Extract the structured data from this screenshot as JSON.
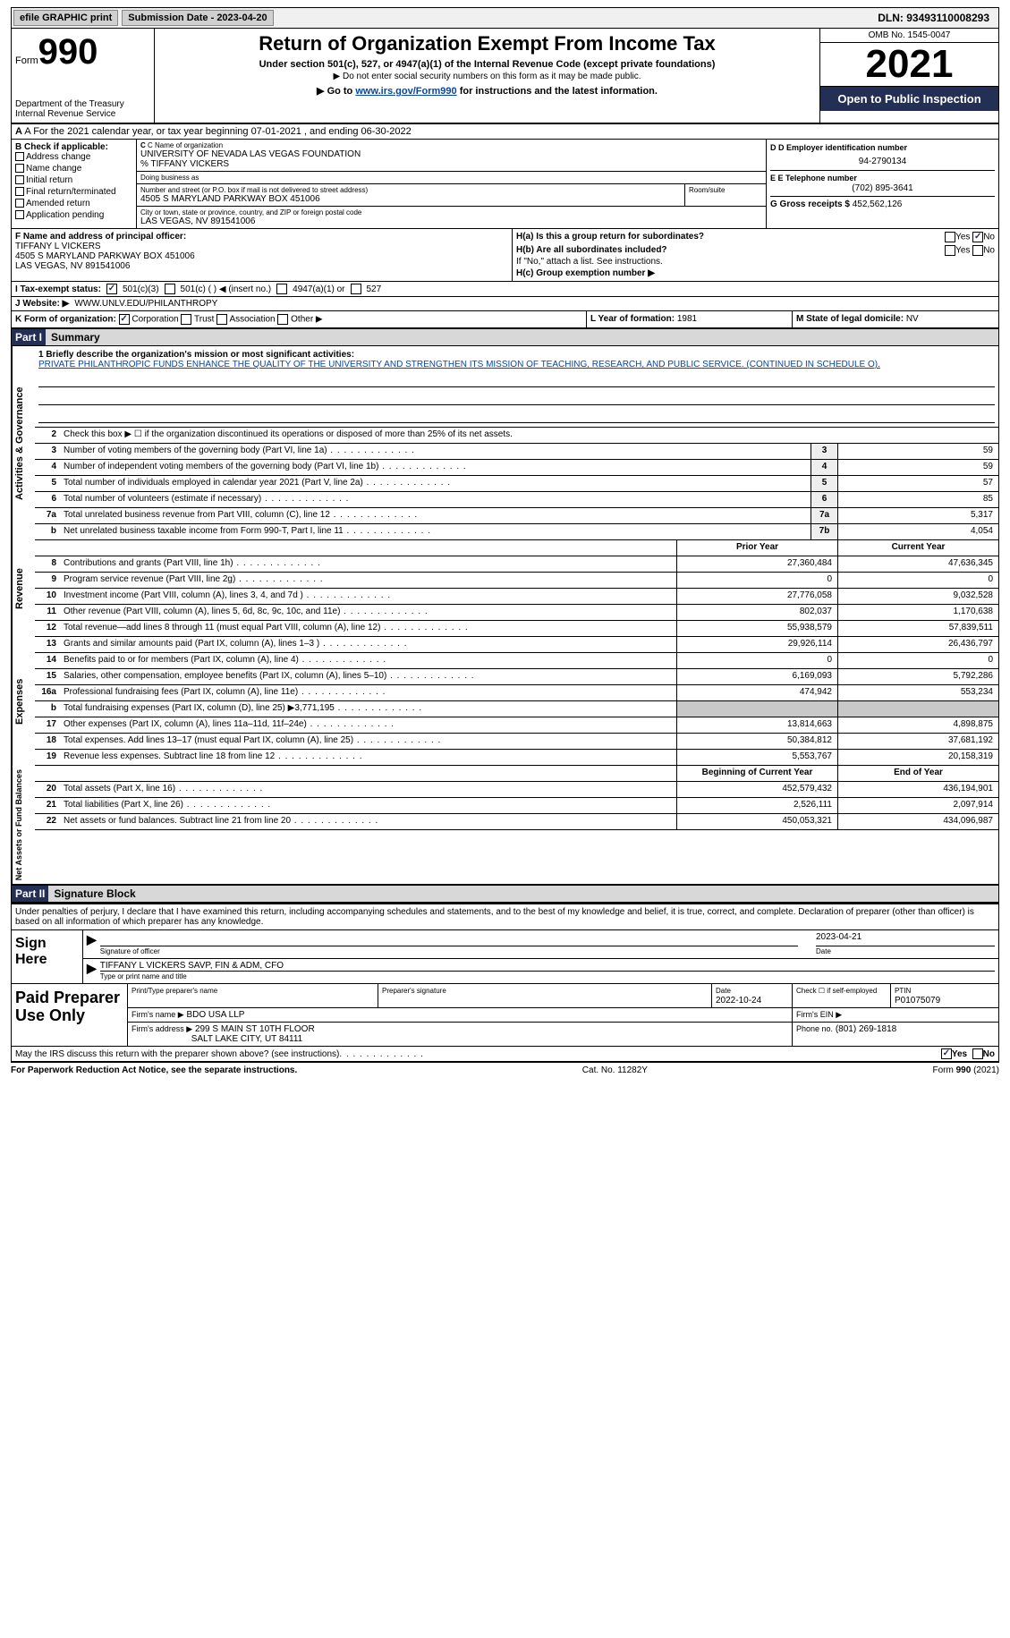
{
  "topbar": {
    "efile_label": "efile GRAPHIC print",
    "submission_label": "Submission Date - 2023-04-20",
    "dln_label": "DLN: 93493110008293"
  },
  "header": {
    "form_prefix": "Form",
    "form_number": "990",
    "dept": "Department of the Treasury Internal Revenue Service",
    "title": "Return of Organization Exempt From Income Tax",
    "subtitle": "Under section 501(c), 527, or 4947(a)(1) of the Internal Revenue Code (except private foundations)",
    "note1": "▶ Do not enter social security numbers on this form as it may be made public.",
    "note2_prefix": "▶ Go to ",
    "note2_link": "www.irs.gov/Form990",
    "note2_suffix": " for instructions and the latest information.",
    "omb": "OMB No. 1545-0047",
    "year": "2021",
    "open": "Open to Public Inspection"
  },
  "row_a": {
    "text": "A For the 2021 calendar year, or tax year beginning 07-01-2021     , and ending 06-30-2022"
  },
  "box_b": {
    "label": "B Check if applicable:",
    "opts": [
      "Address change",
      "Name change",
      "Initial return",
      "Final return/terminated",
      "Amended return",
      "Application pending"
    ]
  },
  "box_c": {
    "name_lbl": "C Name of organization",
    "name": "UNIVERSITY OF NEVADA LAS VEGAS FOUNDATION",
    "care_of": "% TIFFANY VICKERS",
    "dba_lbl": "Doing business as",
    "street_lbl": "Number and street (or P.O. box if mail is not delivered to street address)",
    "street": "4505 S MARYLAND PARKWAY BOX 451006",
    "room_lbl": "Room/suite",
    "city_lbl": "City or town, state or province, country, and ZIP or foreign postal code",
    "city": "LAS VEGAS, NV  891541006"
  },
  "box_d": {
    "ein_lbl": "D Employer identification number",
    "ein": "94-2790134",
    "tel_lbl": "E Telephone number",
    "tel": "(702) 895-3641",
    "gross_lbl": "G Gross receipts $",
    "gross": "452,562,126"
  },
  "box_f": {
    "lbl": "F Name and address of principal officer:",
    "name": "TIFFANY L VICKERS",
    "addr1": "4505 S MARYLAND PARKWAY BOX 451006",
    "addr2": "LAS VEGAS, NV  891541006"
  },
  "box_h": {
    "ha": "H(a)  Is this a group return for subordinates?",
    "hb": "H(b)  Are all subordinates included?",
    "hb_note": "If \"No,\" attach a list. See instructions.",
    "hc": "H(c)  Group exemption number ▶"
  },
  "row_i": {
    "lbl": "I  Tax-exempt status:",
    "opts": [
      "501(c)(3)",
      "501(c) (  ) ◀ (insert no.)",
      "4947(a)(1) or",
      "527"
    ]
  },
  "row_j": {
    "lbl": "J  Website: ▶",
    "val": "WWW.UNLV.EDU/PHILANTHROPY"
  },
  "row_k": {
    "lbl": "K Form of organization:",
    "opts": [
      "Corporation",
      "Trust",
      "Association",
      "Other ▶"
    ]
  },
  "row_l": {
    "lbl": "L Year of formation:",
    "val": "1981"
  },
  "row_m": {
    "lbl": "M State of legal domicile:",
    "val": "NV"
  },
  "part1": {
    "label": "Part I",
    "title": "Summary"
  },
  "mission": {
    "lbl": "1  Briefly describe the organization's mission or most significant activities:",
    "txt": "PRIVATE PHILANTHROPIC FUNDS ENHANCE THE QUALITY OF THE UNIVERSITY AND STRENGTHEN ITS MISSION OF TEACHING, RESEARCH, AND PUBLIC SERVICE. (CONTINUED IN SCHEDULE O)."
  },
  "sections": {
    "activities": {
      "tab": "Activities & Governance",
      "lines": [
        {
          "n": "2",
          "t": "Check this box ▶ ☐ if the organization discontinued its operations or disposed of more than 25% of its net assets."
        },
        {
          "n": "3",
          "t": "Number of voting members of the governing body (Part VI, line 1a)",
          "b": "3",
          "v": "59"
        },
        {
          "n": "4",
          "t": "Number of independent voting members of the governing body (Part VI, line 1b)",
          "b": "4",
          "v": "59"
        },
        {
          "n": "5",
          "t": "Total number of individuals employed in calendar year 2021 (Part V, line 2a)",
          "b": "5",
          "v": "57"
        },
        {
          "n": "6",
          "t": "Total number of volunteers (estimate if necessary)",
          "b": "6",
          "v": "85"
        },
        {
          "n": "7a",
          "t": "Total unrelated business revenue from Part VIII, column (C), line 12",
          "b": "7a",
          "v": "5,317"
        },
        {
          "n": "b",
          "t": "Net unrelated business taxable income from Form 990-T, Part I, line 11",
          "b": "7b",
          "v": "4,054"
        }
      ]
    },
    "revenue": {
      "tab": "Revenue",
      "hdr": {
        "py": "Prior Year",
        "cy": "Current Year"
      },
      "lines": [
        {
          "n": "8",
          "t": "Contributions and grants (Part VIII, line 1h)",
          "py": "27,360,484",
          "cy": "47,636,345"
        },
        {
          "n": "9",
          "t": "Program service revenue (Part VIII, line 2g)",
          "py": "0",
          "cy": "0"
        },
        {
          "n": "10",
          "t": "Investment income (Part VIII, column (A), lines 3, 4, and 7d )",
          "py": "27,776,058",
          "cy": "9,032,528"
        },
        {
          "n": "11",
          "t": "Other revenue (Part VIII, column (A), lines 5, 6d, 8c, 9c, 10c, and 11e)",
          "py": "802,037",
          "cy": "1,170,638"
        },
        {
          "n": "12",
          "t": "Total revenue—add lines 8 through 11 (must equal Part VIII, column (A), line 12)",
          "py": "55,938,579",
          "cy": "57,839,511"
        }
      ]
    },
    "expenses": {
      "tab": "Expenses",
      "lines": [
        {
          "n": "13",
          "t": "Grants and similar amounts paid (Part IX, column (A), lines 1–3 )",
          "py": "29,926,114",
          "cy": "26,436,797"
        },
        {
          "n": "14",
          "t": "Benefits paid to or for members (Part IX, column (A), line 4)",
          "py": "0",
          "cy": "0"
        },
        {
          "n": "15",
          "t": "Salaries, other compensation, employee benefits (Part IX, column (A), lines 5–10)",
          "py": "6,169,093",
          "cy": "5,792,286"
        },
        {
          "n": "16a",
          "t": "Professional fundraising fees (Part IX, column (A), line 11e)",
          "py": "474,942",
          "cy": "553,234"
        },
        {
          "n": "b",
          "t": "Total fundraising expenses (Part IX, column (D), line 25) ▶3,771,195",
          "py": "",
          "cy": "",
          "shade": true
        },
        {
          "n": "17",
          "t": "Other expenses (Part IX, column (A), lines 11a–11d, 11f–24e)",
          "py": "13,814,663",
          "cy": "4,898,875"
        },
        {
          "n": "18",
          "t": "Total expenses. Add lines 13–17 (must equal Part IX, column (A), line 25)",
          "py": "50,384,812",
          "cy": "37,681,192"
        },
        {
          "n": "19",
          "t": "Revenue less expenses. Subtract line 18 from line 12",
          "py": "5,553,767",
          "cy": "20,158,319"
        }
      ]
    },
    "netassets": {
      "tab": "Net Assets or Fund Balances",
      "hdr": {
        "py": "Beginning of Current Year",
        "cy": "End of Year"
      },
      "lines": [
        {
          "n": "20",
          "t": "Total assets (Part X, line 16)",
          "py": "452,579,432",
          "cy": "436,194,901"
        },
        {
          "n": "21",
          "t": "Total liabilities (Part X, line 26)",
          "py": "2,526,111",
          "cy": "2,097,914"
        },
        {
          "n": "22",
          "t": "Net assets or fund balances. Subtract line 21 from line 20",
          "py": "450,053,321",
          "cy": "434,096,987"
        }
      ]
    }
  },
  "part2": {
    "label": "Part II",
    "title": "Signature Block"
  },
  "sig": {
    "decl": "Under penalties of perjury, I declare that I have examined this return, including accompanying schedules and statements, and to the best of my knowledge and belief, it is true, correct, and complete. Declaration of preparer (other than officer) is based on all information of which preparer has any knowledge.",
    "sign_here": "Sign Here",
    "sig_officer": "Signature of officer",
    "sig_date": "2023-04-21",
    "date_lbl": "Date",
    "officer_name": "TIFFANY L VICKERS  SAVP, FIN & ADM, CFO",
    "type_lbl": "Type or print name and title"
  },
  "prep": {
    "lbl": "Paid Preparer Use Only",
    "print_lbl": "Print/Type preparer's name",
    "sig_lbl": "Preparer's signature",
    "date_lbl": "Date",
    "date": "2022-10-24",
    "check_lbl": "Check ☐ if self-employed",
    "ptin_lbl": "PTIN",
    "ptin": "P01075079",
    "firm_name_lbl": "Firm's name    ▶",
    "firm_name": "BDO USA LLP",
    "firm_ein_lbl": "Firm's EIN ▶",
    "firm_addr_lbl": "Firm's address ▶",
    "firm_addr1": "299 S MAIN ST 10TH FLOOR",
    "firm_addr2": "SALT LAKE CITY, UT  84111",
    "phone_lbl": "Phone no.",
    "phone": "(801) 269-1818"
  },
  "discuss": {
    "txt": "May the IRS discuss this return with the preparer shown above? (see instructions)",
    "yes": "Yes",
    "no": "No"
  },
  "footer": {
    "left": "For Paperwork Reduction Act Notice, see the separate instructions.",
    "mid": "Cat. No. 11282Y",
    "right": "Form 990 (2021)"
  },
  "colors": {
    "accent": "#232f54",
    "link": "#0645ad",
    "shade": "#c8c8c8"
  }
}
